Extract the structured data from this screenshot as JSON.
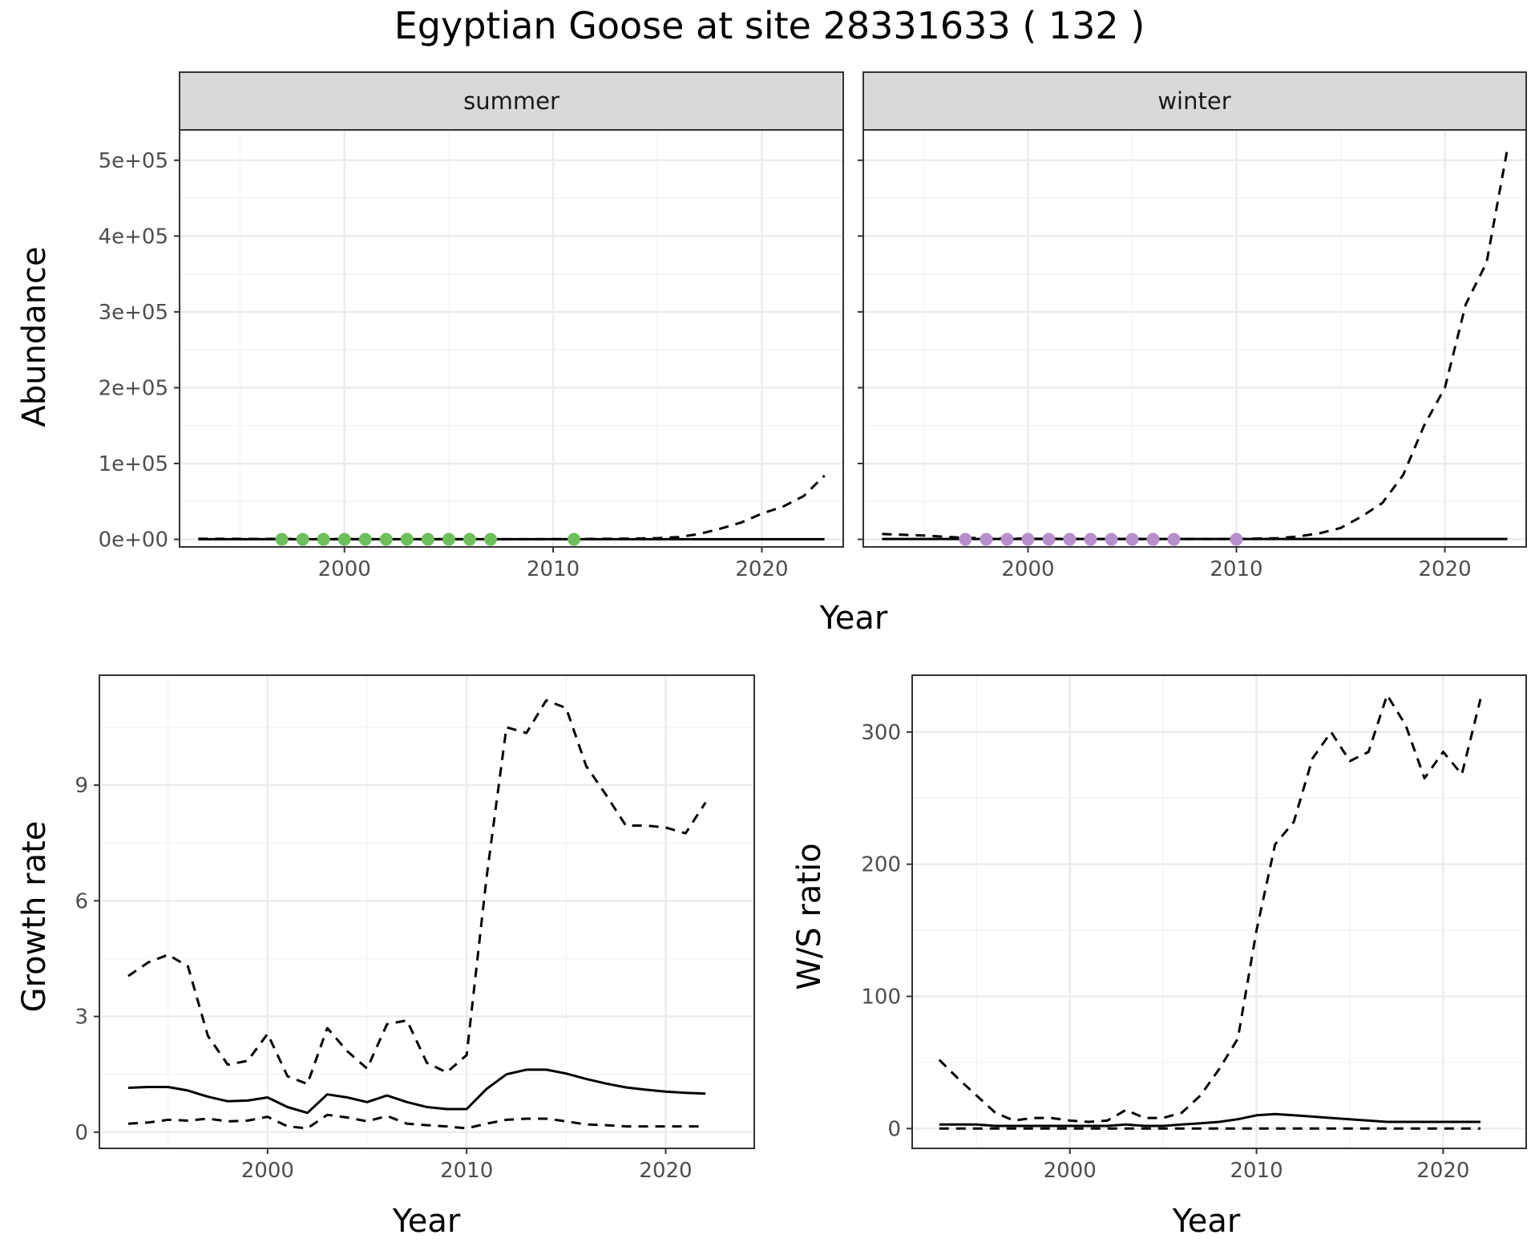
{
  "title": "Egyptian Goose at site 28331633 ( 132 )",
  "colors": {
    "summer_points": "#6dbf5c",
    "winter_points": "#b78fcc",
    "line": "#000000",
    "strip_fill": "#d9d9d9",
    "grid_major": "#ebebeb"
  },
  "chart_data": [
    {
      "type": "line",
      "panel": "summer",
      "strip": "summer",
      "xlabel": "Year",
      "ylabel": "Abundance",
      "xlim": [
        1992.1,
        2023.9
      ],
      "ylim": [
        -10000,
        540000
      ],
      "xticks": [
        2000,
        2010,
        2020
      ],
      "xtick_labels": [
        "2000",
        "2010",
        "2020"
      ],
      "yticks": [
        0,
        100000,
        200000,
        300000,
        400000,
        500000
      ],
      "ytick_labels": [
        "0e+00",
        "1e+05",
        "2e+05",
        "3e+05",
        "4e+05",
        "5e+05"
      ],
      "grid": true,
      "points": {
        "x": [
          1997,
          1998,
          1999,
          2000,
          2001,
          2002,
          2003,
          2004,
          2005,
          2006,
          2007,
          2011
        ],
        "y": [
          0,
          0,
          0,
          0,
          0,
          0,
          0,
          0,
          0,
          0,
          0,
          0
        ]
      },
      "series": [
        {
          "style": "solid",
          "x": [
            1993,
            2023
          ],
          "y": [
            200,
            200
          ]
        },
        {
          "style": "dashed",
          "x": [
            1993,
            1996,
            2000,
            2005,
            2010,
            2013,
            2015,
            2016,
            2017,
            2018,
            2019,
            2020,
            2021,
            2022,
            2023
          ],
          "y": [
            800,
            600,
            300,
            200,
            300,
            800,
            1500,
            3000,
            7000,
            14000,
            22000,
            34000,
            43000,
            57000,
            84000
          ]
        }
      ]
    },
    {
      "type": "line",
      "panel": "winter",
      "strip": "winter",
      "xlabel": "Year",
      "ylabel": "Abundance",
      "xlim": [
        1992.1,
        2023.9
      ],
      "ylim": [
        -10000,
        540000
      ],
      "xticks": [
        2000,
        2010,
        2020
      ],
      "xtick_labels": [
        "2000",
        "2010",
        "2020"
      ],
      "yticks": [
        0,
        100000,
        200000,
        300000,
        400000,
        500000
      ],
      "grid": true,
      "points": {
        "x": [
          1997,
          1998,
          1999,
          2000,
          2001,
          2002,
          2003,
          2004,
          2005,
          2006,
          2007,
          2010
        ],
        "y": [
          0,
          0,
          0,
          0,
          0,
          0,
          0,
          0,
          0,
          0,
          0,
          0
        ]
      },
      "series": [
        {
          "style": "solid",
          "x": [
            1993,
            2023
          ],
          "y": [
            500,
            500
          ]
        },
        {
          "style": "dashed",
          "x": [
            1993,
            1995,
            1997,
            2000,
            2005,
            2010,
            2012,
            2013,
            2014,
            2015,
            2016,
            2017,
            2018,
            2019,
            2020,
            2021,
            2022,
            2023
          ],
          "y": [
            7000,
            5000,
            2000,
            800,
            400,
            500,
            1500,
            4000,
            8000,
            15000,
            30000,
            48000,
            85000,
            150000,
            200000,
            310000,
            365000,
            515000
          ]
        }
      ]
    },
    {
      "type": "line",
      "panel": "growth",
      "xlabel": "Year",
      "ylabel": "Growth rate",
      "xlim": [
        1991.55,
        2024.45
      ],
      "ylim": [
        -0.42,
        11.85
      ],
      "xticks": [
        2000,
        2010,
        2020
      ],
      "xtick_labels": [
        "2000",
        "2010",
        "2020"
      ],
      "yticks": [
        0,
        3,
        6,
        9
      ],
      "ytick_labels": [
        "0",
        "3",
        "6",
        "9"
      ],
      "grid": true,
      "series": [
        {
          "style": "dashed",
          "x": [
            1993,
            1994,
            1995,
            1996,
            1997,
            1998,
            1999,
            2000,
            2001,
            2002,
            2003,
            2004,
            2005,
            2006,
            2007,
            2008,
            2009,
            2010,
            2011,
            2012,
            2013,
            2014,
            2015,
            2016,
            2017,
            2018,
            2019,
            2020,
            2021,
            2022
          ],
          "y": [
            4.05,
            4.4,
            4.6,
            4.3,
            2.5,
            1.75,
            1.85,
            2.55,
            1.45,
            1.25,
            2.7,
            2.1,
            1.65,
            2.8,
            2.9,
            1.8,
            1.55,
            2.0,
            6.6,
            10.5,
            10.35,
            11.2,
            11.0,
            9.5,
            8.75,
            7.95,
            7.95,
            7.9,
            7.75,
            8.55
          ]
        },
        {
          "style": "solid",
          "x": [
            1993,
            1994,
            1995,
            1996,
            1997,
            1998,
            1999,
            2000,
            2001,
            2002,
            2003,
            2004,
            2005,
            2006,
            2007,
            2008,
            2009,
            2010,
            2011,
            2012,
            2013,
            2014,
            2015,
            2016,
            2017,
            2018,
            2019,
            2020,
            2021,
            2022
          ],
          "y": [
            1.15,
            1.17,
            1.17,
            1.08,
            0.92,
            0.8,
            0.82,
            0.9,
            0.65,
            0.5,
            0.98,
            0.9,
            0.78,
            0.95,
            0.78,
            0.65,
            0.6,
            0.6,
            1.12,
            1.5,
            1.62,
            1.62,
            1.52,
            1.38,
            1.26,
            1.16,
            1.1,
            1.05,
            1.02,
            1.0
          ]
        },
        {
          "style": "dashed",
          "x": [
            1993,
            1994,
            1995,
            1996,
            1997,
            1998,
            1999,
            2000,
            2001,
            2002,
            2003,
            2004,
            2005,
            2006,
            2007,
            2008,
            2009,
            2010,
            2011,
            2012,
            2013,
            2014,
            2015,
            2016,
            2017,
            2018,
            2019,
            2020,
            2021,
            2022
          ],
          "y": [
            0.22,
            0.25,
            0.32,
            0.3,
            0.35,
            0.28,
            0.3,
            0.4,
            0.15,
            0.1,
            0.45,
            0.38,
            0.28,
            0.42,
            0.22,
            0.18,
            0.15,
            0.1,
            0.22,
            0.32,
            0.35,
            0.35,
            0.28,
            0.2,
            0.18,
            0.15,
            0.15,
            0.15,
            0.15,
            0.15
          ]
        }
      ]
    },
    {
      "type": "line",
      "panel": "ws_ratio",
      "xlabel": "Year",
      "ylabel": "W/S ratio",
      "xlim": [
        1991.55,
        2024.45
      ],
      "ylim": [
        -15,
        343
      ],
      "xticks": [
        2000,
        2010,
        2020
      ],
      "xtick_labels": [
        "2000",
        "2010",
        "2020"
      ],
      "yticks": [
        0,
        100,
        200,
        300
      ],
      "ytick_labels": [
        "0",
        "100",
        "200",
        "300"
      ],
      "grid": true,
      "series": [
        {
          "style": "dashed",
          "x": [
            1993,
            1994,
            1995,
            1996,
            1997,
            1998,
            1999,
            2000,
            2001,
            2002,
            2003,
            2004,
            2005,
            2006,
            2007,
            2008,
            2009,
            2010,
            2011,
            2012,
            2013,
            2014,
            2015,
            2016,
            2017,
            2018,
            2019,
            2020,
            2021,
            2022
          ],
          "y": [
            52,
            38,
            25,
            12,
            6,
            8,
            8,
            6,
            5,
            6,
            14,
            8,
            8,
            12,
            25,
            45,
            68,
            150,
            215,
            232,
            280,
            300,
            278,
            285,
            328,
            305,
            265,
            285,
            268,
            325
          ]
        },
        {
          "style": "solid",
          "x": [
            1993,
            1994,
            1995,
            1996,
            1997,
            1998,
            1999,
            2000,
            2001,
            2002,
            2003,
            2004,
            2005,
            2006,
            2007,
            2008,
            2009,
            2010,
            2011,
            2012,
            2013,
            2014,
            2015,
            2016,
            2017,
            2018,
            2019,
            2020,
            2021,
            2022
          ],
          "y": [
            3,
            3,
            3,
            2,
            2,
            2,
            2,
            2,
            2,
            2,
            3,
            2,
            2,
            3,
            4,
            5,
            7,
            10,
            11,
            10,
            9,
            8,
            7,
            6,
            5,
            5,
            5,
            5,
            5,
            5
          ]
        },
        {
          "style": "dashed",
          "x": [
            1993,
            2022
          ],
          "y": [
            0,
            0
          ]
        }
      ]
    }
  ]
}
